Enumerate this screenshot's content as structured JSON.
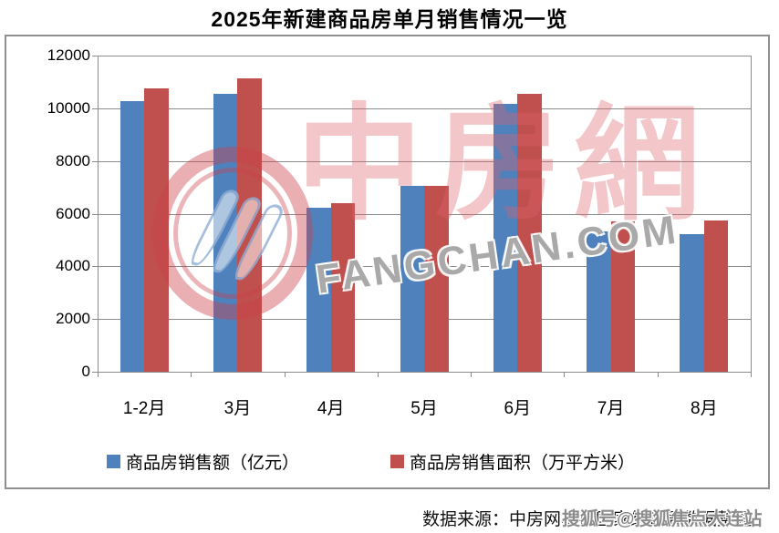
{
  "title": "2025年新建商品房单月销售情况一览",
  "chart_data": {
    "type": "bar",
    "title": "2025年新建商品房单月销售情况一览",
    "categories": [
      "1-2月",
      "3月",
      "4月",
      "5月",
      "6月",
      "7月",
      "8月"
    ],
    "series": [
      {
        "name": "商品房销售额（亿元）",
        "color": "#4F81BD",
        "values": [
          10259,
          10539,
          6237,
          7056,
          10150,
          5325,
          5235
        ]
      },
      {
        "name": "商品房销售面积（万平方米）",
        "color": "#C0504D",
        "values": [
          10746,
          11123,
          6393,
          7053,
          10536,
          5709,
          5744
        ]
      }
    ],
    "ylim": [
      0,
      12000
    ],
    "y_ticks": [
      0,
      2000,
      4000,
      6000,
      8000,
      10000,
      12000
    ],
    "grid": true,
    "legend_position": "bottom-inside"
  },
  "watermark": {
    "logo_name": "zhongfangwang-ring-logo",
    "cn": "中房網",
    "en": "FANGCHAN.COM"
  },
  "footer": {
    "source": "数据来源：中房网根据国家统计局数据整理",
    "overlay": "搜狐号@搜狐焦点大连站"
  },
  "colors": {
    "bar_blue": "#4F81BD",
    "bar_red": "#C0504D",
    "grid": "#8C8C8C",
    "watermark_pink": "#DE606A",
    "watermark_gray": "#8C8C8C"
  }
}
